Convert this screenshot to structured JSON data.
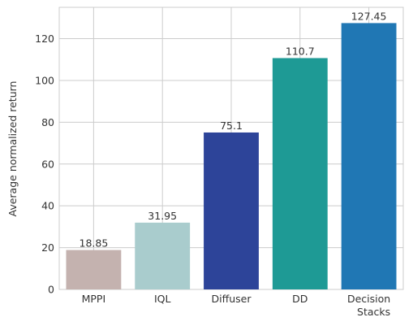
{
  "chart_data": {
    "type": "bar",
    "categories": [
      [
        "MPPI"
      ],
      [
        "IQL"
      ],
      [
        "Diffuser"
      ],
      [
        "DD"
      ],
      [
        "Decision",
        "Stacks"
      ]
    ],
    "values": [
      18.85,
      31.95,
      75.1,
      110.7,
      127.45
    ],
    "value_labels": [
      "18.85",
      "31.95",
      "75.1",
      "110.7",
      "127.45"
    ],
    "colors": [
      "#c4b2af",
      "#a9cccd",
      "#2d4499",
      "#1e9a95",
      "#2077b4"
    ],
    "ylabel": "Average normalized return",
    "xlabel": "",
    "title": "",
    "ylim": [
      0,
      135
    ],
    "yticks": [
      0,
      20,
      40,
      60,
      80,
      100,
      120
    ],
    "grid": true,
    "legend": "none"
  }
}
